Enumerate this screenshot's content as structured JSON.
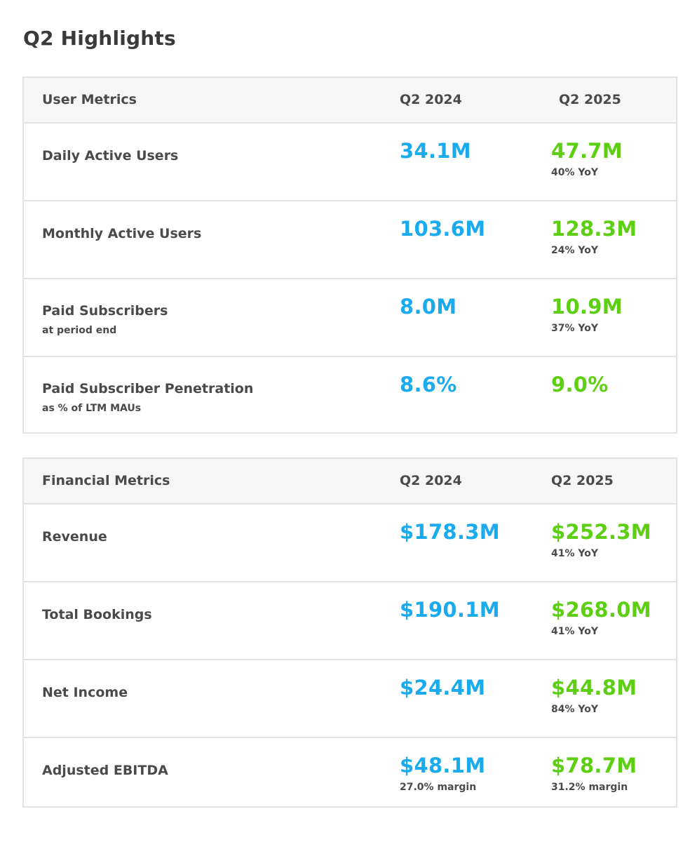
{
  "page_title": "Q2 Highlights",
  "user_metrics": {
    "header": {
      "label": "User Metrics",
      "col_a": "Q2 2024",
      "col_b": "Q2 2025"
    },
    "rows": [
      {
        "name": "Daily Active Users",
        "sub": "",
        "q2_2024": "34.1M",
        "q2_2024_note": "",
        "q2_2025": "47.7M",
        "q2_2025_note": "40% YoY"
      },
      {
        "name": "Monthly Active Users",
        "sub": "",
        "q2_2024": "103.6M",
        "q2_2024_note": "",
        "q2_2025": "128.3M",
        "q2_2025_note": "24% YoY"
      },
      {
        "name": "Paid Subscribers",
        "sub": "at period end",
        "q2_2024": "8.0M",
        "q2_2024_note": "",
        "q2_2025": "10.9M",
        "q2_2025_note": "37% YoY"
      },
      {
        "name": "Paid Subscriber Penetration",
        "sub": "as % of LTM MAUs",
        "q2_2024": "8.6%",
        "q2_2024_note": "",
        "q2_2025": "9.0%",
        "q2_2025_note": ""
      }
    ]
  },
  "financial_metrics": {
    "header": {
      "label": "Financial Metrics",
      "col_a": "Q2 2024",
      "col_b": "Q2 2025"
    },
    "rows": [
      {
        "name": "Revenue",
        "sub": "",
        "q2_2024": "$178.3M",
        "q2_2024_note": "",
        "q2_2025": "$252.3M",
        "q2_2025_note": "41% YoY"
      },
      {
        "name": "Total Bookings",
        "sub": "",
        "q2_2024": "$190.1M",
        "q2_2024_note": "",
        "q2_2025": "$268.0M",
        "q2_2025_note": "41% YoY"
      },
      {
        "name": "Net Income",
        "sub": "",
        "q2_2024": "$24.4M",
        "q2_2024_note": "",
        "q2_2025": "$44.8M",
        "q2_2025_note": "84% YoY"
      },
      {
        "name": "Adjusted EBITDA",
        "sub": "",
        "q2_2024": "$48.1M",
        "q2_2024_note": "27.0% margin",
        "q2_2025": "$78.7M",
        "q2_2025_note": "31.2% margin"
      }
    ]
  },
  "colors": {
    "q2_2024_value": "#1aabee",
    "q2_2025_value": "#5ccf12",
    "header_bg": "#f6f6f6",
    "border": "#e2e2e2"
  }
}
